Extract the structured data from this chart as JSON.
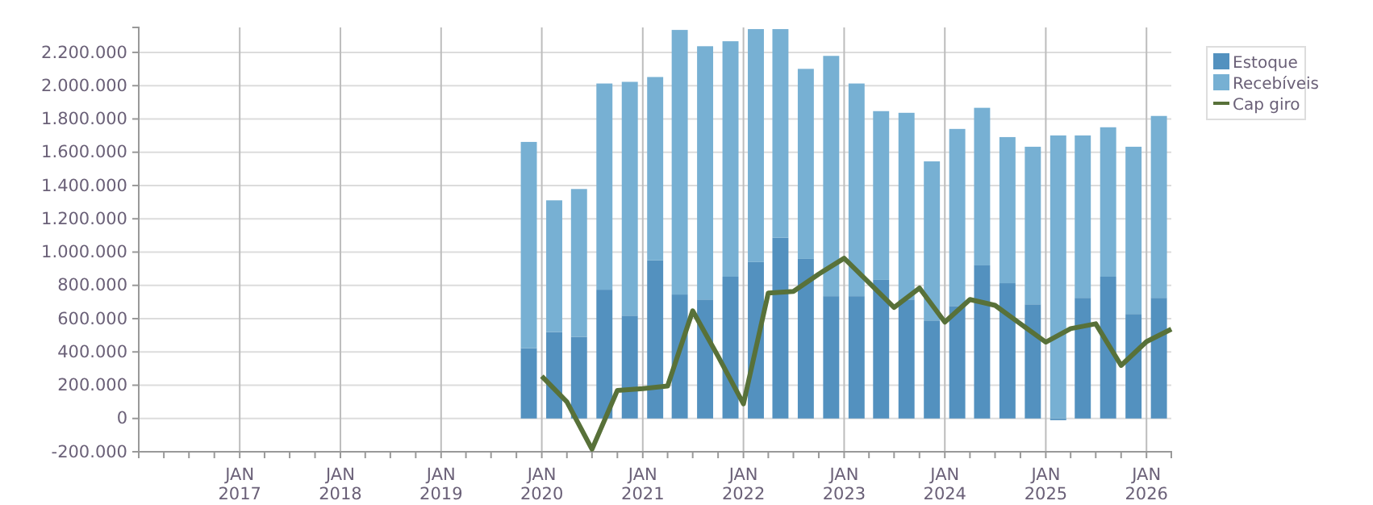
{
  "chart_data": {
    "type": "bar",
    "stacked": true,
    "x": [
      "2019-11-15",
      "2020-02-15",
      "2020-05-15",
      "2020-08-15",
      "2020-11-15",
      "2021-02-15",
      "2021-05-15",
      "2021-08-15",
      "2021-11-15",
      "2022-02-15",
      "2022-05-15",
      "2022-08-15",
      "2022-11-15",
      "2023-02-15",
      "2023-05-15",
      "2023-08-15",
      "2023-11-15",
      "2024-02-15",
      "2024-05-15",
      "2024-08-15",
      "2024-11-15",
      "2025-02-15",
      "2025-05-15",
      "2025-08-15",
      "2025-11-15",
      "2026-02-15"
    ],
    "series": [
      {
        "name": "Estoque",
        "color": "#5391bf",
        "values": [
          423000,
          520000,
          491000,
          774000,
          618000,
          950000,
          745000,
          715000,
          852000,
          940000,
          1086000,
          959000,
          735000,
          735000,
          833000,
          715000,
          589000,
          676000,
          920000,
          813000,
          686000,
          -10000,
          725000,
          852000,
          628000,
          725000
        ]
      },
      {
        "name": "Recebíveis",
        "color": "#77b0d3",
        "values": [
          1239000,
          791000,
          888000,
          1239000,
          1405000,
          1102000,
          1590000,
          1522000,
          1415000,
          1400000,
          1254000,
          1142000,
          1444000,
          1278000,
          1014000,
          1122000,
          956000,
          1064000,
          947000,
          878000,
          947000,
          1701000,
          976000,
          898000,
          1005000,
          1093000
        ]
      },
      {
        "name": "Cap giro",
        "type": "line",
        "color": "#587139",
        "x": [
          "2020-01",
          "2020-04",
          "2020-07",
          "2020-10",
          "2021-01",
          "2021-04",
          "2021-07",
          "2021-10",
          "2022-01",
          "2022-04",
          "2022-07",
          "2022-10",
          "2023-01",
          "2023-04",
          "2023-07",
          "2023-10",
          "2024-01",
          "2024-04",
          "2024-07",
          "2024-10",
          "2025-01",
          "2025-04",
          "2025-07",
          "2025-10",
          "2026-01",
          "2026-04"
        ],
        "values": [
          254000,
          100000,
          -185000,
          169000,
          179000,
          195000,
          647000,
          374000,
          88000,
          754000,
          764000,
          868000,
          963000,
          816000,
          667000,
          784000,
          579000,
          715000,
          680000,
          569000,
          459000,
          540000,
          569000,
          319000,
          462000,
          537000
        ]
      }
    ],
    "xlim": [
      "2016-01-01",
      "2026-04-01"
    ],
    "xticks": [
      {
        "value": "2016-04-01",
        "label": null
      },
      {
        "value": "2016-07-01",
        "label": null
      },
      {
        "value": "2016-10-01",
        "label": null
      },
      {
        "value": "2017-01-01",
        "label": "JAN 2017"
      },
      {
        "value": "2017-04-01",
        "label": null
      },
      {
        "value": "2017-07-01",
        "label": null
      },
      {
        "value": "2017-10-01",
        "label": null
      },
      {
        "value": "2018-01-01",
        "label": "JAN 2018"
      },
      {
        "value": "2018-04-01",
        "label": null
      },
      {
        "value": "2018-07-01",
        "label": null
      },
      {
        "value": "2018-10-01",
        "label": null
      },
      {
        "value": "2019-01-01",
        "label": "JAN 2019"
      },
      {
        "value": "2019-04-01",
        "label": null
      },
      {
        "value": "2019-07-01",
        "label": null
      },
      {
        "value": "2019-10-01",
        "label": null
      },
      {
        "value": "2020-01-01",
        "label": "JAN 2020"
      },
      {
        "value": "2020-04-01",
        "label": null
      },
      {
        "value": "2020-07-01",
        "label": null
      },
      {
        "value": "2020-10-01",
        "label": null
      },
      {
        "value": "2021-01-01",
        "label": "JAN 2021"
      },
      {
        "value": "2021-04-01",
        "label": null
      },
      {
        "value": "2021-07-01",
        "label": null
      },
      {
        "value": "2021-10-01",
        "label": null
      },
      {
        "value": "2022-01-01",
        "label": "JAN 2022"
      },
      {
        "value": "2022-04-01",
        "label": null
      },
      {
        "value": "2022-07-01",
        "label": null
      },
      {
        "value": "2022-10-01",
        "label": null
      },
      {
        "value": "2023-01-01",
        "label": "JAN 2023"
      },
      {
        "value": "2023-04-01",
        "label": null
      },
      {
        "value": "2023-07-01",
        "label": null
      },
      {
        "value": "2023-10-01",
        "label": null
      },
      {
        "value": "2024-01-01",
        "label": "JAN 2024"
      },
      {
        "value": "2024-04-01",
        "label": null
      },
      {
        "value": "2024-07-01",
        "label": null
      },
      {
        "value": "2024-10-01",
        "label": null
      },
      {
        "value": "2025-01-01",
        "label": "JAN 2025"
      },
      {
        "value": "2025-04-01",
        "label": null
      },
      {
        "value": "2025-07-01",
        "label": null
      },
      {
        "value": "2025-10-01",
        "label": null
      },
      {
        "value": "2026-01-01",
        "label": "JAN 2026"
      }
    ],
    "ylim": [
      -200000,
      2350000
    ],
    "yticks": [
      {
        "value": -200000,
        "label": "-200.000"
      },
      0,
      {
        "value": 200000,
        "label": "200.000"
      },
      {
        "value": 400000,
        "label": "400.000"
      },
      {
        "value": 600000,
        "label": "600.000"
      },
      {
        "value": 800000,
        "label": "800.000"
      },
      {
        "value": 1000000,
        "label": "1.000.000"
      },
      {
        "value": 1200000,
        "label": "1.200.000"
      },
      {
        "value": 1400000,
        "label": "1.400.000"
      },
      {
        "value": 1600000,
        "label": "1.600.000"
      },
      {
        "value": 1800000,
        "label": "1.800.000"
      },
      {
        "value": 2000000,
        "label": "2.000.000"
      },
      {
        "value": 2200000,
        "label": "2.200.000"
      }
    ],
    "grid": true,
    "legend": "right",
    "line_style": "solid",
    "marker": "none"
  }
}
